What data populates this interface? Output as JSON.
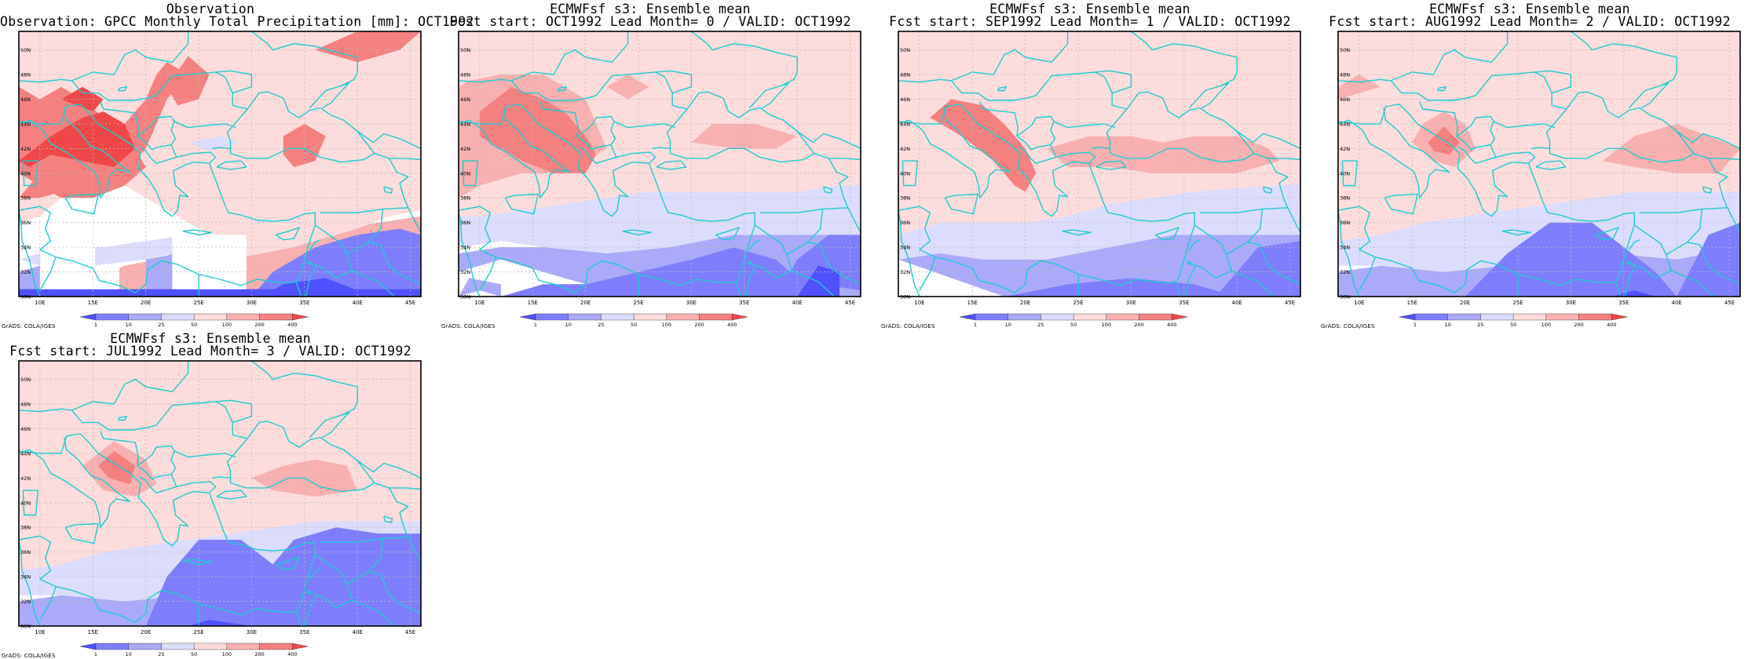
{
  "panels": [
    {
      "title1": "Observation",
      "title2": "Observation: GPCC Monthly Total Precipitation [mm]: OCT1992",
      "field": "obs"
    },
    {
      "title1": "ECMWFsf s3: Ensemble mean",
      "title2": "Fcst start: OCT1992  Lead Month= 0 / VALID: OCT1992",
      "field": "f0"
    },
    {
      "title1": "ECMWFsf s3: Ensemble mean",
      "title2": "Fcst start: SEP1992  Lead Month= 1 / VALID: OCT1992",
      "field": "f1"
    },
    {
      "title1": "ECMWFsf s3: Ensemble mean",
      "title2": "Fcst start: AUG1992  Lead Month= 2 / VALID: OCT1992",
      "field": "f2"
    },
    {
      "title1": "ECMWFsf s3: Ensemble mean",
      "title2": "Fcst start: JUL1992  Lead Month= 3 / VALID: OCT1992",
      "field": "f3"
    }
  ],
  "map": {
    "lat_labels": [
      "30N",
      "32N",
      "34N",
      "36N",
      "38N",
      "40N",
      "42N",
      "44N",
      "46N",
      "48N",
      "50N"
    ],
    "lon_labels": [
      "10E",
      "15E",
      "20E",
      "25E",
      "30E",
      "35E",
      "40E",
      "45E"
    ],
    "lon_range": [
      8,
      46
    ],
    "lat_range": [
      30,
      51.5
    ],
    "coastline_color": "#1ecbd0",
    "grid": true
  },
  "legend": {
    "labels": [
      "1",
      "10",
      "25",
      "50",
      "100",
      "200",
      "400"
    ],
    "colors": [
      "#5050ff",
      "#7e7efc",
      "#aaaaf8",
      "#dcdcfc",
      "#fcdcdc",
      "#f8b0b0",
      "#f58080",
      "#f04848"
    ]
  },
  "credit": "GrADS: COLA/IGES"
}
